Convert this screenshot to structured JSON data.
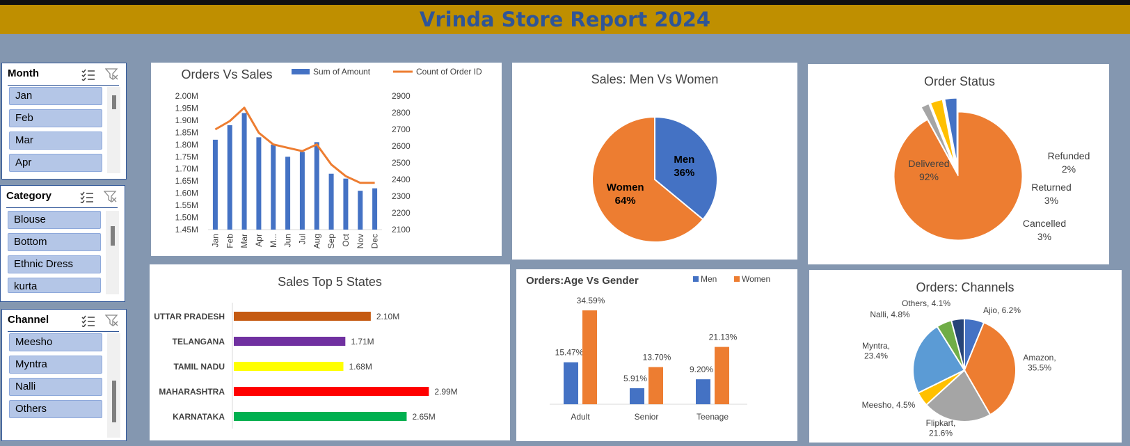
{
  "report_title": "Vrinda Store Report 2024",
  "slicers": [
    {
      "title": "Month",
      "items": [
        "Jan",
        "Feb",
        "Mar",
        "Apr"
      ]
    },
    {
      "title": "Category",
      "items": [
        "Blouse",
        "Bottom",
        "Ethnic Dress",
        "kurta"
      ]
    },
    {
      "title": "Channel",
      "items": [
        "Meesho",
        "Myntra",
        "Nalli",
        "Others"
      ]
    }
  ],
  "chart_data": [
    {
      "type": "bar+line",
      "title": "Orders Vs Sales",
      "categories": [
        "Jan",
        "Feb",
        "Mar",
        "Apr",
        "M...",
        "Jun",
        "Jul",
        "Aug",
        "Sep",
        "Oct",
        "Nov",
        "Dec"
      ],
      "series": [
        {
          "name": "Sum of Amount",
          "type": "bar",
          "axis": "left",
          "color": "#4472c4",
          "values": [
            1.82,
            1.88,
            1.93,
            1.83,
            1.8,
            1.75,
            1.77,
            1.81,
            1.68,
            1.66,
            1.61,
            1.62
          ]
        },
        {
          "name": "Count of Order ID",
          "type": "line",
          "axis": "right",
          "color": "#ed7d31",
          "values": [
            2700,
            2750,
            2830,
            2680,
            2610,
            2590,
            2570,
            2610,
            2490,
            2420,
            2380,
            2380
          ]
        }
      ],
      "y_left_ticks": [
        "2.00M",
        "1.95M",
        "1.90M",
        "1.85M",
        "1.80M",
        "1.75M",
        "1.70M",
        "1.65M",
        "1.60M",
        "1.55M",
        "1.50M",
        "1.45M"
      ],
      "y_left_range": [
        1.45,
        2.0
      ],
      "y_right_ticks": [
        "2900",
        "2800",
        "2700",
        "2600",
        "2500",
        "2400",
        "2300",
        "2200",
        "2100"
      ],
      "y_right_range": [
        2100,
        2900
      ]
    },
    {
      "type": "pie",
      "title": "Sales: Men Vs Women",
      "slices": [
        {
          "label": "Men",
          "value": 36,
          "text": "36%",
          "color": "#4472c4"
        },
        {
          "label": "Women",
          "value": 64,
          "text": "64%",
          "color": "#ed7d31"
        }
      ]
    },
    {
      "type": "pie",
      "title": "Order Status",
      "slices": [
        {
          "label": "Delivered",
          "value": 92,
          "text": "92%",
          "color": "#ed7d31"
        },
        {
          "label": "Refunded",
          "value": 2,
          "text": "2%",
          "color": "#a5a5a5"
        },
        {
          "label": "Returned",
          "value": 3,
          "text": "3%",
          "color": "#ffc000"
        },
        {
          "label": "Cancelled",
          "value": 3,
          "text": "3%",
          "color": "#4472c4"
        }
      ]
    },
    {
      "type": "bar",
      "orientation": "horizontal",
      "title": "Sales Top 5 States",
      "categories": [
        "UTTAR PRADESH",
        "TELANGANA",
        "TAMIL NADU",
        "MAHARASHTRA",
        "KARNATAKA"
      ],
      "values": [
        2.1,
        1.71,
        1.68,
        2.99,
        2.65
      ],
      "labels": [
        "2.10M",
        "1.71M",
        "1.68M",
        "2.99M",
        "2.65M"
      ],
      "colors": [
        "#c55a11",
        "#7030a0",
        "#ffff00",
        "#ff0000",
        "#00b050"
      ]
    },
    {
      "type": "bar",
      "title": "Orders:Age Vs Gender",
      "categories": [
        "Adult",
        "Senior",
        "Teenage"
      ],
      "series": [
        {
          "name": "Men",
          "color": "#4472c4",
          "values": [
            15.47,
            5.91,
            9.2
          ],
          "labels": [
            "15.47%",
            "5.91%",
            "9.20%"
          ]
        },
        {
          "name": "Women",
          "color": "#ed7d31",
          "values": [
            34.59,
            13.7,
            21.13
          ],
          "labels": [
            "34.59%",
            "13.70%",
            "21.13%"
          ]
        }
      ]
    },
    {
      "type": "pie",
      "title": "Orders: Channels",
      "slices": [
        {
          "label": "Ajio, 6.2%",
          "value": 6.2,
          "color": "#4472c4"
        },
        {
          "label": "Amazon,\n35.5%",
          "value": 35.5,
          "color": "#ed7d31"
        },
        {
          "label": "Flipkart,\n21.6%",
          "value": 21.6,
          "color": "#a5a5a5"
        },
        {
          "label": "Meesho, 4.5%",
          "value": 4.5,
          "color": "#ffc000"
        },
        {
          "label": "Myntra,\n23.4%",
          "value": 23.4,
          "color": "#5b9bd5"
        },
        {
          "label": "Nalli, 4.8%",
          "value": 4.8,
          "color": "#70ad47"
        },
        {
          "label": "Others, 4.1%",
          "value": 4.1,
          "color": "#264478"
        }
      ]
    }
  ]
}
